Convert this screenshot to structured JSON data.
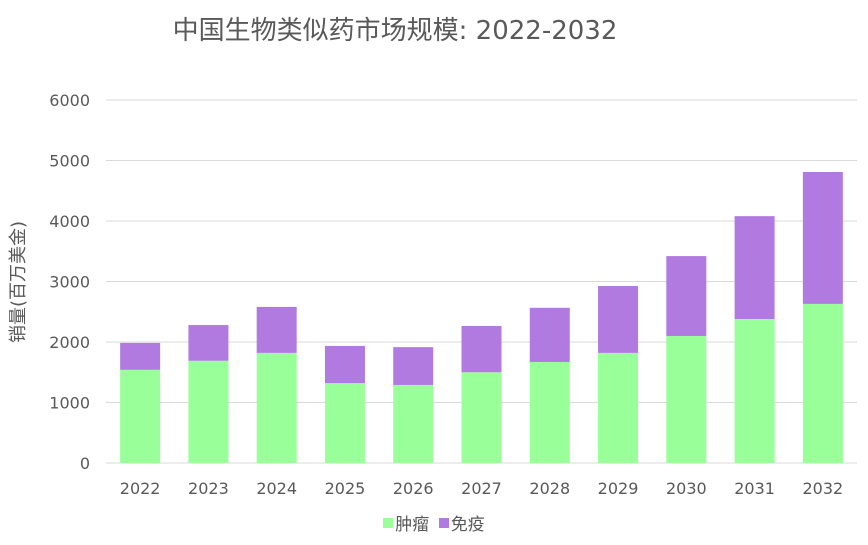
{
  "chart_data": {
    "type": "bar",
    "stacked": true,
    "title": "中国生物类似药市场规模: 2022-2032",
    "xlabel": "",
    "ylabel": "销量(百万美金)",
    "ylim": [
      0,
      6000
    ],
    "yticks": [
      0,
      1000,
      2000,
      3000,
      4000,
      5000,
      6000
    ],
    "grid": true,
    "legend_position": "bottom",
    "categories": [
      "2022",
      "2023",
      "2024",
      "2025",
      "2026",
      "2027",
      "2028",
      "2029",
      "2030",
      "2031",
      "2032"
    ],
    "series": [
      {
        "name": "肿瘤",
        "color": "#99ff99",
        "values": [
          1540,
          1690,
          1820,
          1320,
          1290,
          1500,
          1670,
          1820,
          2100,
          2380,
          2630
        ]
      },
      {
        "name": "免疫",
        "color": "#b07ae0",
        "values": [
          445,
          590,
          760,
          615,
          625,
          765,
          895,
          1105,
          1320,
          1700,
          2180
        ]
      }
    ]
  }
}
